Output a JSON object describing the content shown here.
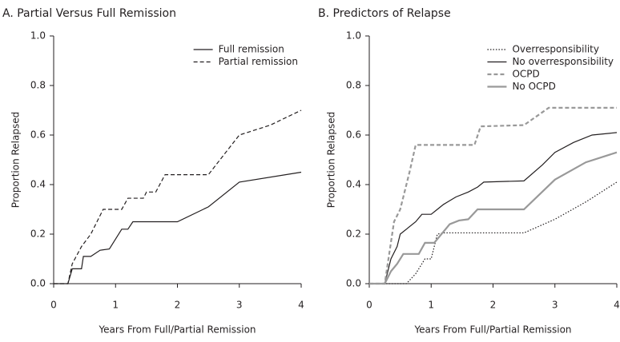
{
  "chart_data": [
    {
      "type": "line",
      "title": "A. Partial Versus Full Remission",
      "xlabel": "Years From Full/Partial Remission",
      "ylabel": "Proportion Relapsed",
      "xlim": [
        0,
        4
      ],
      "ylim": [
        0,
        1
      ],
      "xticks": [
        0,
        1,
        2,
        3,
        4
      ],
      "yticks": [
        {
          "value": 0,
          "label": "0.0"
        },
        0.2,
        0.4,
        0.6,
        0.8,
        {
          "value": 1,
          "label": "1.0"
        }
      ],
      "legend": "upper right",
      "series": [
        {
          "name": "Full remission",
          "color": "#231f20",
          "style": "solid",
          "width": 1.2,
          "x": [
            0,
            0.23,
            0.3,
            0.45,
            0.48,
            0.6,
            0.75,
            0.9,
            1.1,
            1.2,
            1.28,
            2,
            2.5,
            3,
            4
          ],
          "values": [
            0,
            0,
            0.06,
            0.06,
            0.11,
            0.11,
            0.135,
            0.14,
            0.22,
            0.22,
            0.25,
            0.25,
            0.31,
            0.41,
            0.45
          ]
        },
        {
          "name": "Partial remission",
          "color": "#231f20",
          "style": "dashed",
          "width": 1.2,
          "x": [
            0,
            0.23,
            0.3,
            0.45,
            0.6,
            0.8,
            1.1,
            1.2,
            1.45,
            1.5,
            1.65,
            1.8,
            2.5,
            3,
            3.5,
            4
          ],
          "values": [
            0,
            0,
            0.08,
            0.15,
            0.2,
            0.3,
            0.3,
            0.345,
            0.345,
            0.37,
            0.37,
            0.44,
            0.44,
            0.6,
            0.64,
            0.7
          ]
        }
      ]
    },
    {
      "type": "line",
      "title": "B. Predictors of Relapse",
      "xlabel": "Years From Full/Partial Remission",
      "ylabel": "Proportion Relapsed",
      "xlim": [
        0,
        4
      ],
      "ylim": [
        0,
        1
      ],
      "xticks": [
        0,
        1,
        2,
        3,
        4
      ],
      "yticks": [
        {
          "value": 0,
          "label": "0.0"
        },
        0.2,
        0.4,
        0.6,
        0.8,
        {
          "value": 1,
          "label": "1.0"
        }
      ],
      "legend": "upper right",
      "series": [
        {
          "name": "Overresponsibility",
          "color": "#231f20",
          "style": "dotted",
          "width": 1.2,
          "x": [
            0,
            0.6,
            0.75,
            0.9,
            1,
            1.1,
            1.2,
            2.5,
            3,
            3.5,
            4
          ],
          "values": [
            0,
            0,
            0.04,
            0.1,
            0.1,
            0.2,
            0.205,
            0.205,
            0.26,
            0.33,
            0.41
          ]
        },
        {
          "name": "No overresponsibility",
          "color": "#231f20",
          "style": "solid",
          "width": 1.2,
          "x": [
            0,
            0.25,
            0.35,
            0.45,
            0.5,
            0.75,
            0.85,
            1,
            1.1,
            1.2,
            1.4,
            1.6,
            1.75,
            1.85,
            2.5,
            2.8,
            3,
            3.3,
            3.6,
            4
          ],
          "values": [
            0,
            0,
            0.1,
            0.15,
            0.2,
            0.25,
            0.28,
            0.28,
            0.3,
            0.32,
            0.35,
            0.37,
            0.39,
            0.41,
            0.415,
            0.48,
            0.53,
            0.57,
            0.6,
            0.61
          ]
        },
        {
          "name": "OCPD",
          "color": "#999999",
          "style": "dashed",
          "width": 2.2,
          "x": [
            0,
            0.25,
            0.4,
            0.5,
            0.65,
            0.75,
            1.7,
            1.8,
            2.5,
            2.9,
            4
          ],
          "values": [
            0,
            0,
            0.25,
            0.3,
            0.45,
            0.56,
            0.56,
            0.635,
            0.64,
            0.71,
            0.71
          ]
        },
        {
          "name": "No OCPD",
          "color": "#999999",
          "style": "solid",
          "width": 2.2,
          "x": [
            0,
            0.25,
            0.35,
            0.45,
            0.55,
            0.8,
            0.9,
            1.05,
            1.3,
            1.45,
            1.6,
            1.75,
            2.5,
            3,
            3.5,
            4
          ],
          "values": [
            0,
            0,
            0.05,
            0.08,
            0.12,
            0.12,
            0.165,
            0.165,
            0.24,
            0.255,
            0.26,
            0.3,
            0.3,
            0.42,
            0.49,
            0.53
          ]
        }
      ]
    }
  ]
}
